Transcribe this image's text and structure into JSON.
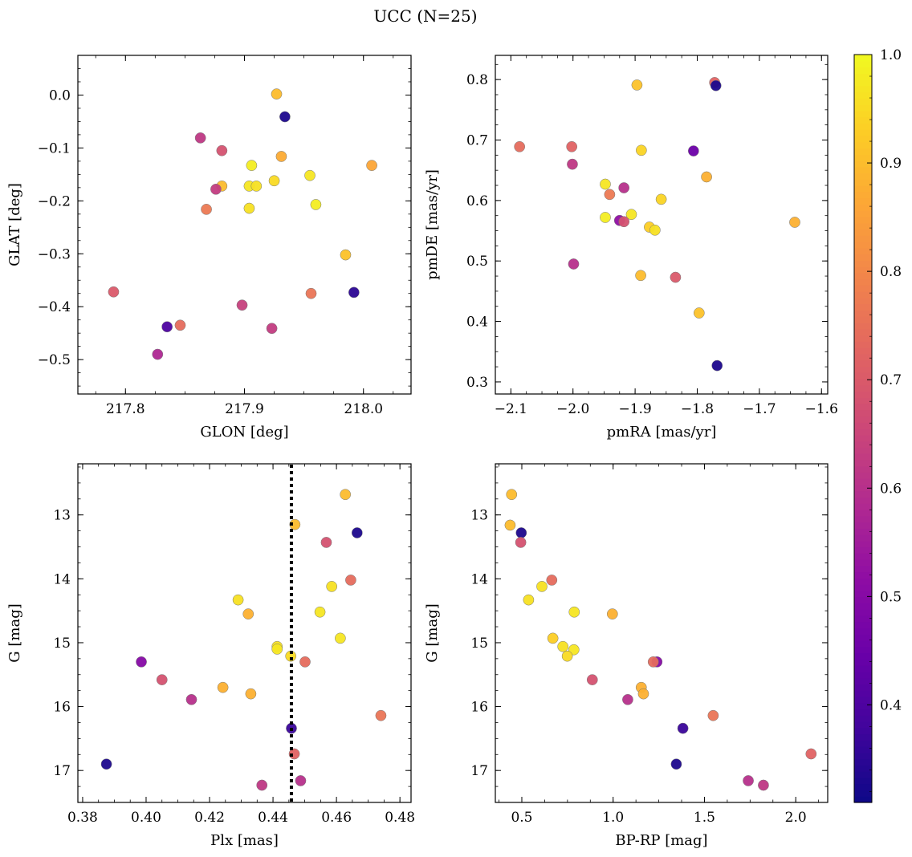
{
  "figure": {
    "title": "UCC (N=25)"
  },
  "colorbar": {
    "colormap": "plasma",
    "range": [
      0.31,
      1.0
    ],
    "ticks": [
      "0.4",
      "0.5",
      "0.6",
      "0.7",
      "0.8",
      "0.9",
      "1.0"
    ],
    "tick_values": [
      0.4,
      0.5,
      0.6,
      0.7,
      0.8,
      0.9,
      1.0
    ]
  },
  "chart_data": [
    {
      "type": "scatter",
      "title": "",
      "xlabel": "GLON [deg]",
      "ylabel": "GLAT [deg]",
      "xlim": [
        217.76,
        218.04
      ],
      "ylim": [
        -0.565,
        0.075
      ],
      "yinvert": false,
      "xticks": [
        217.8,
        217.9,
        218.0
      ],
      "xticklabels": [
        "217.8",
        "217.9",
        "218.0"
      ],
      "yticks": [
        0.0,
        -0.1,
        -0.2,
        -0.3,
        -0.4,
        -0.5
      ],
      "yticklabels": [
        "0.0",
        "−0.1",
        "−0.2",
        "−0.3",
        "−0.4",
        "−0.5"
      ],
      "points": [
        {
          "x": 217.927,
          "y": 0.002,
          "c": 0.9
        },
        {
          "x": 217.934,
          "y": -0.041,
          "c": 0.33
        },
        {
          "x": 217.863,
          "y": -0.081,
          "c": 0.62
        },
        {
          "x": 217.881,
          "y": -0.105,
          "c": 0.68
        },
        {
          "x": 217.931,
          "y": -0.116,
          "c": 0.87
        },
        {
          "x": 217.906,
          "y": -0.133,
          "c": 0.98
        },
        {
          "x": 218.007,
          "y": -0.133,
          "c": 0.86
        },
        {
          "x": 217.955,
          "y": -0.152,
          "c": 0.97
        },
        {
          "x": 217.925,
          "y": -0.162,
          "c": 0.95
        },
        {
          "x": 217.881,
          "y": -0.172,
          "c": 0.9
        },
        {
          "x": 217.904,
          "y": -0.172,
          "c": 0.97
        },
        {
          "x": 217.91,
          "y": -0.172,
          "c": 0.96
        },
        {
          "x": 217.876,
          "y": -0.178,
          "c": 0.63
        },
        {
          "x": 217.96,
          "y": -0.207,
          "c": 0.98
        },
        {
          "x": 217.868,
          "y": -0.216,
          "c": 0.77
        },
        {
          "x": 217.904,
          "y": -0.214,
          "c": 0.96
        },
        {
          "x": 217.985,
          "y": -0.302,
          "c": 0.91
        },
        {
          "x": 217.79,
          "y": -0.372,
          "c": 0.7
        },
        {
          "x": 217.956,
          "y": -0.375,
          "c": 0.76
        },
        {
          "x": 217.992,
          "y": -0.373,
          "c": 0.35
        },
        {
          "x": 217.898,
          "y": -0.397,
          "c": 0.64
        },
        {
          "x": 217.835,
          "y": -0.438,
          "c": 0.4
        },
        {
          "x": 217.846,
          "y": -0.435,
          "c": 0.74
        },
        {
          "x": 217.923,
          "y": -0.441,
          "c": 0.63
        },
        {
          "x": 217.827,
          "y": -0.49,
          "c": 0.58
        }
      ]
    },
    {
      "type": "scatter",
      "title": "",
      "xlabel": "pmRA [mas/yr]",
      "ylabel": "pmDE [mas/yr]",
      "xlim": [
        -2.125,
        -1.59
      ],
      "ylim": [
        0.28,
        0.84
      ],
      "yinvert": false,
      "xticks": [
        -2.1,
        -2.0,
        -1.9,
        -1.8,
        -1.7,
        -1.6
      ],
      "xticklabels": [
        "−2.1",
        "−2.0",
        "−1.9",
        "−1.8",
        "−1.7",
        "−1.6"
      ],
      "yticks": [
        0.3,
        0.4,
        0.5,
        0.6,
        0.7,
        0.8
      ],
      "yticklabels": [
        "0.3",
        "0.4",
        "0.5",
        "0.6",
        "0.7",
        "0.8"
      ],
      "points": [
        {
          "x": -1.772,
          "y": 0.795,
          "c": 0.72
        },
        {
          "x": -1.77,
          "y": 0.79,
          "c": 0.33
        },
        {
          "x": -1.897,
          "y": 0.791,
          "c": 0.91
        },
        {
          "x": -2.086,
          "y": 0.689,
          "c": 0.74
        },
        {
          "x": -2.002,
          "y": 0.689,
          "c": 0.72
        },
        {
          "x": -1.89,
          "y": 0.683,
          "c": 0.94
        },
        {
          "x": -1.806,
          "y": 0.682,
          "c": 0.45
        },
        {
          "x": -2.001,
          "y": 0.66,
          "c": 0.62
        },
        {
          "x": -1.785,
          "y": 0.639,
          "c": 0.88
        },
        {
          "x": -1.948,
          "y": 0.627,
          "c": 0.97
        },
        {
          "x": -1.918,
          "y": 0.621,
          "c": 0.6
        },
        {
          "x": -1.941,
          "y": 0.61,
          "c": 0.77
        },
        {
          "x": -1.858,
          "y": 0.602,
          "c": 0.94
        },
        {
          "x": -1.906,
          "y": 0.577,
          "c": 0.97
        },
        {
          "x": -1.948,
          "y": 0.572,
          "c": 0.98
        },
        {
          "x": -1.925,
          "y": 0.567,
          "c": 0.52
        },
        {
          "x": -1.918,
          "y": 0.565,
          "c": 0.68
        },
        {
          "x": -1.643,
          "y": 0.564,
          "c": 0.88
        },
        {
          "x": -1.877,
          "y": 0.556,
          "c": 0.93
        },
        {
          "x": -1.868,
          "y": 0.551,
          "c": 0.96
        },
        {
          "x": -1.999,
          "y": 0.495,
          "c": 0.6
        },
        {
          "x": -1.891,
          "y": 0.476,
          "c": 0.9
        },
        {
          "x": -1.835,
          "y": 0.473,
          "c": 0.7
        },
        {
          "x": -1.797,
          "y": 0.414,
          "c": 0.91
        },
        {
          "x": -1.768,
          "y": 0.327,
          "c": 0.33
        }
      ]
    },
    {
      "type": "scatter",
      "title": "",
      "xlabel": "Plx [mas]",
      "ylabel": "G [mag]",
      "xlim": [
        0.3785,
        0.4835
      ],
      "ylim": [
        12.2,
        17.5
      ],
      "yinvert": true,
      "vline": 0.4458,
      "xticks": [
        0.38,
        0.4,
        0.42,
        0.44,
        0.46,
        0.48
      ],
      "xticklabels": [
        "0.38",
        "0.40",
        "0.42",
        "0.44",
        "0.46",
        "0.48"
      ],
      "yticks": [
        13,
        14,
        15,
        16,
        17
      ],
      "yticklabels": [
        "13",
        "14",
        "15",
        "16",
        "17"
      ],
      "points": [
        {
          "x": 0.4628,
          "y": 12.68,
          "c": 0.9
        },
        {
          "x": 0.4469,
          "y": 13.15,
          "c": 0.9
        },
        {
          "x": 0.4665,
          "y": 13.28,
          "c": 0.33
        },
        {
          "x": 0.4568,
          "y": 13.43,
          "c": 0.68
        },
        {
          "x": 0.4645,
          "y": 14.02,
          "c": 0.74
        },
        {
          "x": 0.4585,
          "y": 14.12,
          "c": 0.96
        },
        {
          "x": 0.429,
          "y": 14.33,
          "c": 0.96
        },
        {
          "x": 0.4548,
          "y": 14.52,
          "c": 0.97
        },
        {
          "x": 0.4322,
          "y": 14.55,
          "c": 0.88
        },
        {
          "x": 0.4612,
          "y": 14.93,
          "c": 0.97
        },
        {
          "x": 0.4413,
          "y": 15.06,
          "c": 0.96
        },
        {
          "x": 0.4413,
          "y": 15.1,
          "c": 0.97
        },
        {
          "x": 0.4456,
          "y": 15.21,
          "c": 0.95
        },
        {
          "x": 0.4501,
          "y": 15.3,
          "c": 0.74
        },
        {
          "x": 0.3985,
          "y": 15.3,
          "c": 0.5
        },
        {
          "x": 0.405,
          "y": 15.58,
          "c": 0.68
        },
        {
          "x": 0.4242,
          "y": 15.7,
          "c": 0.88
        },
        {
          "x": 0.433,
          "y": 15.8,
          "c": 0.88
        },
        {
          "x": 0.4143,
          "y": 15.89,
          "c": 0.6
        },
        {
          "x": 0.474,
          "y": 16.14,
          "c": 0.76
        },
        {
          "x": 0.4458,
          "y": 16.34,
          "c": 0.37
        },
        {
          "x": 0.4467,
          "y": 16.74,
          "c": 0.72
        },
        {
          "x": 0.3875,
          "y": 16.9,
          "c": 0.33
        },
        {
          "x": 0.4487,
          "y": 17.16,
          "c": 0.6
        },
        {
          "x": 0.4365,
          "y": 17.23,
          "c": 0.62
        }
      ]
    },
    {
      "type": "scatter",
      "title": "",
      "xlabel": "BP-RP [mag]",
      "ylabel": "G [mag]",
      "xlim": [
        0.355,
        2.175
      ],
      "ylim": [
        12.2,
        17.5
      ],
      "yinvert": true,
      "xticks": [
        0.5,
        1.0,
        1.5,
        2.0
      ],
      "xticklabels": [
        "0.5",
        "1.0",
        "1.5",
        "2.0"
      ],
      "yticks": [
        13,
        14,
        15,
        16,
        17
      ],
      "yticklabels": [
        "13",
        "14",
        "15",
        "16",
        "17"
      ],
      "points": [
        {
          "x": 0.444,
          "y": 12.68,
          "c": 0.9
        },
        {
          "x": 0.436,
          "y": 13.16,
          "c": 0.9
        },
        {
          "x": 0.497,
          "y": 13.28,
          "c": 0.33
        },
        {
          "x": 0.494,
          "y": 13.43,
          "c": 0.68
        },
        {
          "x": 0.664,
          "y": 14.02,
          "c": 0.74
        },
        {
          "x": 0.61,
          "y": 14.12,
          "c": 0.96
        },
        {
          "x": 0.537,
          "y": 14.33,
          "c": 0.96
        },
        {
          "x": 0.787,
          "y": 14.52,
          "c": 0.97
        },
        {
          "x": 0.996,
          "y": 14.55,
          "c": 0.88
        },
        {
          "x": 0.67,
          "y": 14.93,
          "c": 0.93
        },
        {
          "x": 0.725,
          "y": 15.06,
          "c": 0.96
        },
        {
          "x": 0.785,
          "y": 15.11,
          "c": 0.97
        },
        {
          "x": 0.749,
          "y": 15.21,
          "c": 0.95
        },
        {
          "x": 1.24,
          "y": 15.3,
          "c": 0.5
        },
        {
          "x": 1.22,
          "y": 15.3,
          "c": 0.74
        },
        {
          "x": 0.886,
          "y": 15.58,
          "c": 0.68
        },
        {
          "x": 1.154,
          "y": 15.7,
          "c": 0.88
        },
        {
          "x": 1.166,
          "y": 15.8,
          "c": 0.88
        },
        {
          "x": 1.08,
          "y": 15.89,
          "c": 0.6
        },
        {
          "x": 1.548,
          "y": 16.14,
          "c": 0.76
        },
        {
          "x": 1.382,
          "y": 16.34,
          "c": 0.37
        },
        {
          "x": 2.084,
          "y": 16.74,
          "c": 0.72
        },
        {
          "x": 1.346,
          "y": 16.9,
          "c": 0.33
        },
        {
          "x": 1.74,
          "y": 17.16,
          "c": 0.6
        },
        {
          "x": 1.823,
          "y": 17.23,
          "c": 0.62
        }
      ]
    }
  ]
}
